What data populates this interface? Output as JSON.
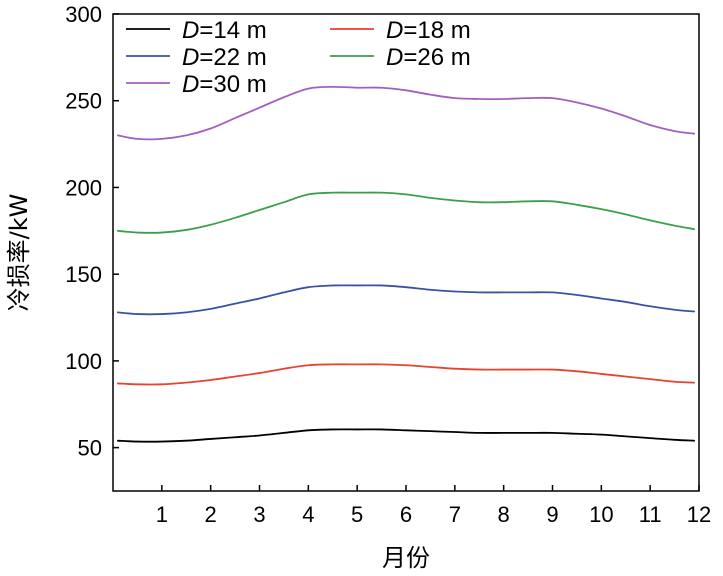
{
  "chart_data": {
    "type": "line",
    "title": "",
    "xlabel": "月份",
    "ylabel": "冷损率/kW",
    "xlim": [
      0,
      12
    ],
    "ylim": [
      25,
      300
    ],
    "x_ticks": [
      "1",
      "2",
      "3",
      "4",
      "5",
      "6",
      "7",
      "8",
      "9",
      "10",
      "11",
      "12"
    ],
    "y_ticks": [
      "50",
      "100",
      "150",
      "200",
      "250",
      "300"
    ],
    "grid": false,
    "legend_position": "top-left",
    "x": [
      0.1,
      0.5,
      1,
      1.5,
      2,
      2.5,
      3,
      3.5,
      4,
      4.5,
      5,
      5.5,
      6,
      6.5,
      7,
      7.5,
      8,
      8.5,
      9,
      9.5,
      10,
      10.5,
      11,
      11.5,
      11.9
    ],
    "series": [
      {
        "legend_var": "D",
        "legend_rest": "=14 m",
        "color": "#000000",
        "values": [
          54,
          53.5,
          53.5,
          54,
          55,
          56,
          57,
          58.5,
          60,
          60.5,
          60.5,
          60.5,
          60,
          59.5,
          59,
          58.5,
          58.5,
          58.5,
          58.5,
          58,
          57.5,
          56.5,
          55.5,
          54.5,
          54
        ]
      },
      {
        "legend_var": "D",
        "legend_rest": "=18 m",
        "color": "#e8432e",
        "values": [
          87,
          86.5,
          86.5,
          87.5,
          89,
          91,
          93,
          95.5,
          97.5,
          98,
          98,
          98,
          97.5,
          96.5,
          95.5,
          95,
          95,
          95,
          95,
          94,
          92.5,
          91,
          89.5,
          88,
          87.5
        ]
      },
      {
        "legend_var": "D",
        "legend_rest": "=22 m",
        "color": "#3b52a3",
        "values": [
          128,
          127,
          127,
          128,
          130,
          133,
          136,
          139.5,
          142.5,
          143.5,
          143.5,
          143.5,
          142.5,
          141,
          140,
          139.5,
          139.5,
          139.5,
          139.5,
          138,
          136,
          134,
          131.5,
          129.5,
          128.5
        ]
      },
      {
        "legend_var": "D",
        "legend_rest": "=26 m",
        "color": "#3aa04a",
        "values": [
          175,
          174,
          174,
          175.5,
          178.5,
          182.5,
          187,
          191.5,
          196,
          197,
          197,
          197,
          196,
          194,
          192.5,
          191.5,
          191.5,
          192,
          192,
          190,
          187.5,
          184.5,
          181,
          178,
          176
        ]
      },
      {
        "legend_var": "D",
        "legend_rest": "=30 m",
        "color": "#a35fc0",
        "values": [
          230,
          228,
          228,
          230,
          234,
          240,
          246,
          252,
          257,
          258,
          257.5,
          257.5,
          256,
          253.5,
          251.5,
          251,
          251,
          251.5,
          251.5,
          249,
          245.5,
          241,
          236,
          232.5,
          231
        ]
      }
    ]
  }
}
